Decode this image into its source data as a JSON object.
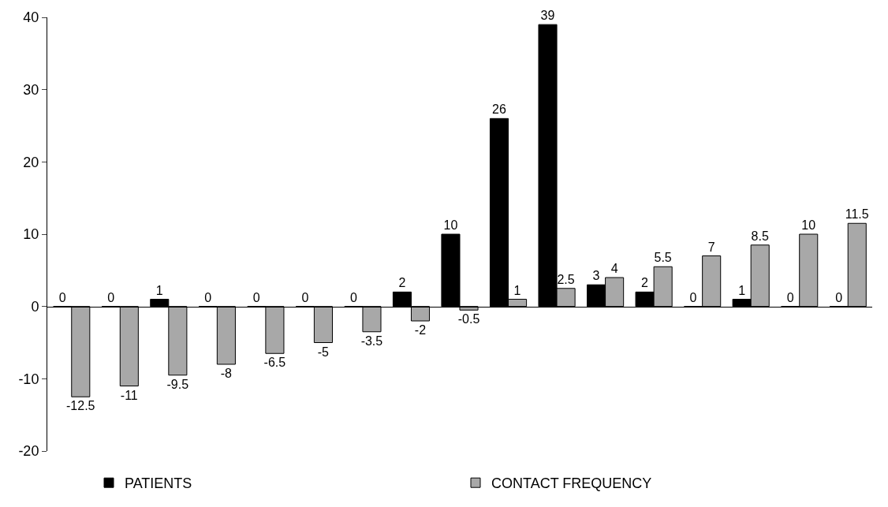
{
  "chart_data": {
    "type": "bar",
    "categories": [
      null,
      null,
      null,
      null,
      null,
      null,
      null,
      null,
      null,
      null,
      null,
      null,
      null,
      null,
      null,
      null,
      null
    ],
    "series": [
      {
        "name": "PATIENTS",
        "color": "#000000",
        "values": [
          0,
          0,
          1,
          0,
          0,
          0,
          0,
          2,
          10,
          26,
          39,
          3,
          2,
          0,
          1,
          0,
          0
        ]
      },
      {
        "name": "CONTACT FREQUENCY",
        "color": "#a8a8a8",
        "values": [
          -12.5,
          -11,
          -9.5,
          -8,
          -6.5,
          -5,
          -3.5,
          -2,
          -0.5,
          1,
          2.5,
          4,
          5.5,
          7,
          8.5,
          10,
          11.5
        ]
      }
    ],
    "ylim": [
      -20,
      40
    ],
    "yticks": [
      -20,
      -10,
      0,
      10,
      20,
      30,
      40
    ],
    "data_labels": true,
    "legend": "bottom",
    "tick_labels": "y"
  }
}
